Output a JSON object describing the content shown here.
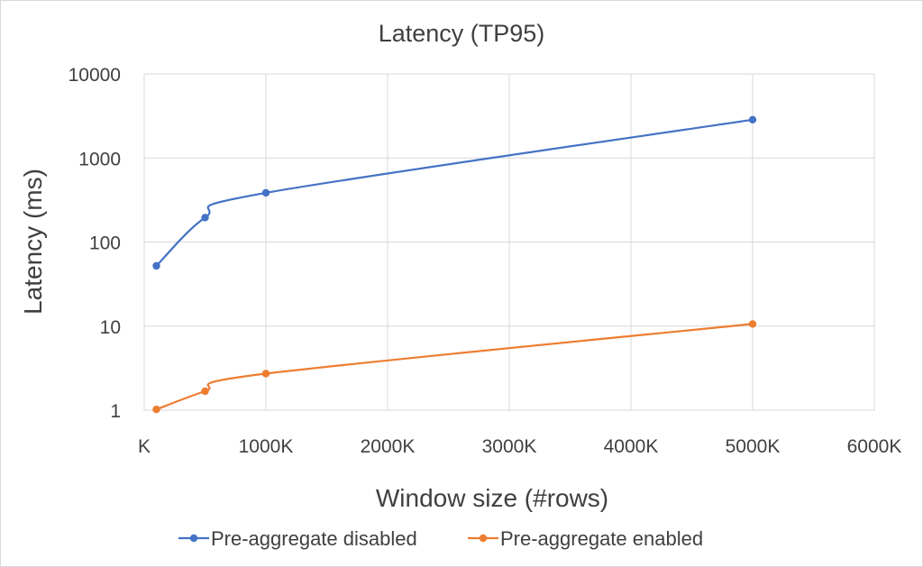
{
  "chart_data": {
    "type": "line",
    "title": "Latency (TP95)",
    "xlabel": "Window size (#rows)",
    "ylabel": "Latency (ms)",
    "xlim": [
      0,
      6000
    ],
    "ylim": [
      1,
      10000
    ],
    "y_scale": "log",
    "x_ticks": [
      "K",
      "1000K",
      "2000K",
      "3000K",
      "4000K",
      "5000K",
      "6000K"
    ],
    "y_ticks": [
      "1",
      "10",
      "100",
      "1000",
      "10000"
    ],
    "grid": true,
    "legend_position": "bottom",
    "series": [
      {
        "name": "Pre-aggregate disabled",
        "color": "#4472c4",
        "points": [
          [
            100,
            52
          ],
          [
            500,
            195
          ],
          [
            1000,
            385
          ],
          [
            5000,
            2850
          ]
        ]
      },
      {
        "name": "Pre-aggregate enabled",
        "color": "#ed7d31",
        "points": [
          [
            100,
            1.02
          ],
          [
            500,
            1.68
          ],
          [
            1000,
            2.72
          ],
          [
            5000,
            10.6
          ]
        ]
      }
    ]
  }
}
